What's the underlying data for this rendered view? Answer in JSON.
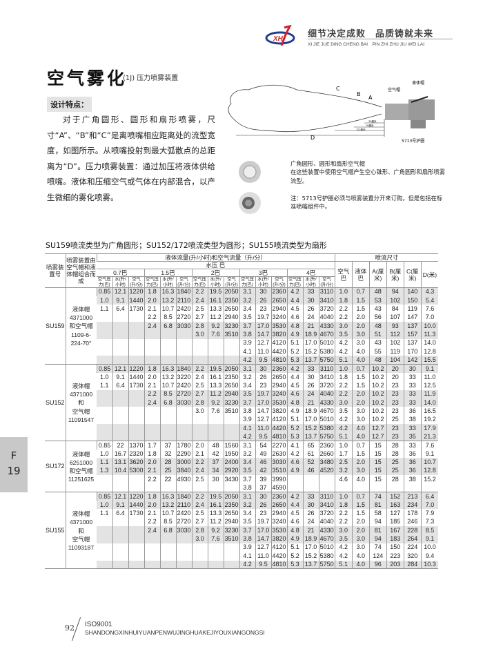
{
  "header": {
    "logo_text": "XH",
    "slogan": "细节决定成败　品质铸就未来",
    "slogan_pinyin": "XI JIE JUE DING CHENG BAI　PIN ZHI ZHU JIU WEI LAI",
    "brand_color": "#1f3f8f",
    "accent_color": "#d0202a"
  },
  "title": {
    "main": "空气雾化",
    "sub": "(1J)  压力喷雾装置"
  },
  "features": {
    "label": "设计特点：",
    "text": "对于广角圆形、圆形和扇形喷雾，尺寸“A”、“B”和“C”是离喷嘴相应距离处的流型宽度，如图所示。从喷嘴投射到最大弧散点的总距离为“D”。压力喷雾装置：通过加压将液体供给喷嘴。液体和压缩空气或气体在内部混合，以产生微细的雾化喷雾。"
  },
  "diagram": {
    "label_a": "A",
    "label_b": "B",
    "label_c": "C",
    "label_d": "D",
    "air_cap": "空气帽",
    "liquid_cap": "液体帽",
    "guard": "5713号护圈",
    "dim1": "30厘米",
    "dim2": "76厘米",
    "dim3": "122厘米"
  },
  "notes": {
    "n1": "广角圆形、圆形和扇形空气帽\n在这些装置中使用空气帽产生空心锥形、广角圆形和扇形喷雾流型。",
    "n2": "注：5713号护圈必须与喷雾装置分开来订购，但是包括在标准喷嘴组件中。"
  },
  "table": {
    "caption": "SU159喷流类型为广角圆形；SU152/172喷流类型为圆形；SU155喷流类型为扇形",
    "h_model": "喷雾装置号",
    "h_combo": "喷雾装置由空气帽和液体帽组合而成",
    "h_flow": "液体流量(升/小时)和空气流量（升/分）",
    "h_pressure": "水压 巴",
    "h_dims": "喷流尺寸",
    "pressures": [
      "0.7巴",
      "1.5巴",
      "2巴",
      "3巴",
      "4巴"
    ],
    "sub_cols": [
      "空气压力(巴)",
      "水(升/小时)",
      "空气(升/分)"
    ],
    "dim_cols": [
      "空气巴",
      "液体巴",
      "A(厘米)",
      "B(厘米)",
      "C(厘米)",
      "D(米)"
    ],
    "groups": [
      {
        "model": "SU159",
        "combo": [
          "液体帽",
          "4371000",
          "和空气帽",
          "1109-6-",
          "224-70°"
        ],
        "combo_start": 2,
        "rows": [
          [
            "0.85",
            "12.1",
            "1220",
            "1.8",
            "16.3",
            "1840",
            "2.2",
            "19.5",
            "2050",
            "3.1",
            "30",
            "2360",
            "4.2",
            "33",
            "3110",
            "1.0",
            "0.7",
            "48",
            "94",
            "140",
            "4.3"
          ],
          [
            "1.0",
            "9.1",
            "1440",
            "2.0",
            "13.2",
            "2110",
            "2.4",
            "16.1",
            "2350",
            "3.2",
            "26",
            "2650",
            "4.4",
            "30",
            "3410",
            "1.8",
            "1.5",
            "53",
            "102",
            "150",
            "5.4"
          ],
          [
            "1.1",
            "6.4",
            "1730",
            "2.1",
            "10.7",
            "2420",
            "2.5",
            "13.3",
            "2650",
            "3.4",
            "23",
            "2940",
            "4.5",
            "26",
            "3720",
            "2.2",
            "1.5",
            "43",
            "84",
            "119",
            "7.6"
          ],
          [
            "",
            "",
            "",
            "2.2",
            "8.5",
            "2720",
            "2.7",
            "11.2",
            "2940",
            "3.5",
            "19.7",
            "3240",
            "4.6",
            "24",
            "4040",
            "2.2",
            "2.0",
            "56",
            "107",
            "147",
            "7.0"
          ],
          [
            "",
            "",
            "",
            "2.4",
            "6.8",
            "3030",
            "2.8",
            "9.2",
            "3230",
            "3.7",
            "17.0",
            "3530",
            "4.8",
            "21",
            "4330",
            "3.0",
            "2.0",
            "48",
            "93",
            "137",
            "10.0"
          ],
          [
            "",
            "",
            "",
            "",
            "",
            "",
            "3.0",
            "7.6",
            "3510",
            "3.8",
            "14.7",
            "3820",
            "4.9",
            "18.9",
            "4670",
            "3.5",
            "3.0",
            "51",
            "112",
            "157",
            "11.3"
          ],
          [
            "",
            "",
            "",
            "",
            "",
            "",
            "",
            "",
            "",
            "3.9",
            "12.7",
            "4120",
            "5.1",
            "17.0",
            "5010",
            "4.2",
            "3.0",
            "43",
            "102",
            "137",
            "14.0"
          ],
          [
            "",
            "",
            "",
            "",
            "",
            "",
            "",
            "",
            "",
            "4.1",
            "11.0",
            "4420",
            "5.2",
            "15.2",
            "5380",
            "4.2",
            "4.0",
            "55",
            "119",
            "170",
            "12.8"
          ],
          [
            "",
            "",
            "",
            "",
            "",
            "",
            "",
            "",
            "",
            "4.2",
            "9.5",
            "4810",
            "5.3",
            "13.7",
            "5750",
            "5.1",
            "4.0",
            "48",
            "104",
            "142",
            "15.5"
          ]
        ]
      },
      {
        "model": "SU152",
        "combo": [
          "液体帽",
          "4371000",
          "和",
          "空气帽",
          "11091547"
        ],
        "combo_start": 2,
        "rows": [
          [
            "0.85",
            "12.1",
            "1220",
            "1.8",
            "16.3",
            "1840",
            "2.2",
            "19.5",
            "2050",
            "3.1",
            "30",
            "2360",
            "4.2",
            "33",
            "3110",
            "1.0",
            "0.7",
            "10.2",
            "20",
            "30",
            "9.1"
          ],
          [
            "1.0",
            "9.1",
            "1440",
            "2.0",
            "13.2",
            "3220",
            "2.4",
            "16.1",
            "2350",
            "3.2",
            "26",
            "2650",
            "4.4",
            "30",
            "3410",
            "1.8",
            "1.5",
            "10.2",
            "20",
            "33",
            "11.0"
          ],
          [
            "1.1",
            "6.4",
            "1730",
            "2.1",
            "10.7",
            "2420",
            "2.5",
            "13.3",
            "2650",
            "3.4",
            "23",
            "2940",
            "4.5",
            "26",
            "3720",
            "2.2",
            "1.5",
            "10.2",
            "23",
            "33",
            "12.5"
          ],
          [
            "",
            "",
            "",
            "2.2",
            "8.5",
            "2720",
            "2.7",
            "11.2",
            "2940",
            "3.5",
            "19.7",
            "3240",
            "4.6",
            "24",
            "4040",
            "2.2",
            "2.0",
            "10.2",
            "23",
            "33",
            "11.9"
          ],
          [
            "",
            "",
            "",
            "2.4",
            "6.8",
            "3030",
            "2.8",
            "9.2",
            "3230",
            "3.7",
            "17.0",
            "3530",
            "4.8",
            "21",
            "4330",
            "3.0",
            "2.0",
            "10.2",
            "23",
            "33",
            "14.0"
          ],
          [
            "",
            "",
            "",
            "",
            "",
            "",
            "3.0",
            "7.6",
            "3510",
            "3.8",
            "14.7",
            "3820",
            "4.9",
            "18.9",
            "4670",
            "3.5",
            "3.0",
            "10.2",
            "23",
            "36",
            "16.5"
          ],
          [
            "",
            "",
            "",
            "",
            "",
            "",
            "",
            "",
            "",
            "3.9",
            "12.7",
            "4120",
            "5.1",
            "17.0",
            "5010",
            "4.2",
            "3.0",
            "10.2",
            "25",
            "38",
            "19.2"
          ],
          [
            "",
            "",
            "",
            "",
            "",
            "",
            "",
            "",
            "",
            "4.1",
            "11.0",
            "4420",
            "5.2",
            "15.2",
            "5380",
            "4.2",
            "4.0",
            "12.7",
            "23",
            "33",
            "17.9"
          ],
          [
            "",
            "",
            "",
            "",
            "",
            "",
            "",
            "",
            "",
            "4.2",
            "9.5",
            "4810",
            "5.3",
            "13.7",
            "5750",
            "5.1",
            "4.0",
            "12.7",
            "23",
            "35",
            "21.3"
          ]
        ]
      },
      {
        "model": "SU172",
        "combo": [
          "液体帽",
          "6251000",
          "和空气帽",
          "11251625"
        ],
        "combo_start": 1,
        "rows": [
          [
            "0.85",
            "22",
            "1370",
            "1.7",
            "37",
            "1780",
            "2.0",
            "48",
            "1560",
            "3.1",
            "54",
            "2270",
            "4.1",
            "65",
            "2360",
            "1.0",
            "0.7",
            "15",
            "28",
            "33",
            "7.6"
          ],
          [
            "1.0",
            "16.7",
            "2320",
            "1.8",
            "32",
            "2290",
            "2.1",
            "42",
            "1950",
            "3.2",
            "49",
            "2630",
            "4.2",
            "61",
            "2660",
            "1.7",
            "1.5",
            "15",
            "28",
            "36",
            "9.1"
          ],
          [
            "1.1",
            "13.1",
            "3620",
            "2.0",
            "28",
            "3000",
            "2.2",
            "37",
            "2400",
            "3.4",
            "46",
            "3030",
            "4.6",
            "52",
            "3480",
            "2.5",
            "2.0",
            "15",
            "25",
            "36",
            "10.7"
          ],
          [
            "1.3",
            "10.4",
            "5300",
            "2.1",
            "25",
            "3840",
            "2.4",
            "34",
            "2920",
            "3.5",
            "42",
            "3510",
            "4.9",
            "46",
            "4520",
            "3.2",
            "3.0",
            "15",
            "25",
            "36",
            "12.8"
          ],
          [
            "",
            "",
            "",
            "2.2",
            "22",
            "4930",
            "2.5",
            "30",
            "3430",
            "3.7",
            "39",
            "3990",
            "",
            "",
            "",
            "4.6",
            "4.0",
            "15",
            "28",
            "38",
            "15.2"
          ],
          [
            "",
            "",
            "",
            "",
            "",
            "",
            "",
            "",
            "",
            "3.8",
            "37",
            "4590",
            "",
            "",
            "",
            "",
            "",
            "",
            "",
            "",
            ""
          ]
        ]
      },
      {
        "model": "SU155",
        "combo": [
          "液体帽",
          "4371000",
          "和",
          "空气帽",
          "11093187"
        ],
        "combo_start": 2,
        "rows": [
          [
            "0.85",
            "12.1",
            "1220",
            "1.8",
            "16.3",
            "1840",
            "2.2",
            "19.5",
            "2050",
            "3.1",
            "30",
            "2360",
            "4.2",
            "33",
            "3110",
            "1.0",
            "0.7",
            "74",
            "152",
            "213",
            "6.4"
          ],
          [
            "1.0",
            "9.1",
            "1440",
            "2.0",
            "13.2",
            "2110",
            "2.4",
            "16.1",
            "2350",
            "3.2",
            "26",
            "2650",
            "4.4",
            "30",
            "3410",
            "1.8",
            "1.5",
            "81",
            "163",
            "234",
            "7.0"
          ],
          [
            "1.1",
            "6.4",
            "1730",
            "2.1",
            "10.7",
            "2420",
            "2.5",
            "13.3",
            "2650",
            "3.4",
            "23",
            "2940",
            "4.5",
            "26",
            "3720",
            "2.2",
            "1.5",
            "58",
            "127",
            "178",
            "7.9"
          ],
          [
            "",
            "",
            "",
            "2.2",
            "8.5",
            "2720",
            "2.7",
            "11.2",
            "2940",
            "3.5",
            "19.7",
            "3240",
            "4.6",
            "24",
            "4040",
            "2.2",
            "2.0",
            "94",
            "185",
            "246",
            "7.3"
          ],
          [
            "",
            "",
            "",
            "2.4",
            "6.8",
            "3030",
            "2.8",
            "9.2",
            "3230",
            "3.7",
            "17.0",
            "3530",
            "4.8",
            "21",
            "4330",
            "3.0",
            "2.0",
            "81",
            "167",
            "228",
            "8.5"
          ],
          [
            "",
            "",
            "",
            "",
            "",
            "",
            "3.0",
            "7.6",
            "3510",
            "3.8",
            "14.7",
            "3820",
            "4.9",
            "18.9",
            "4670",
            "3.5",
            "3.0",
            "94",
            "183",
            "264",
            "9.1"
          ],
          [
            "",
            "",
            "",
            "",
            "",
            "",
            "",
            "",
            "",
            "3.9",
            "12.7",
            "4120",
            "5.1",
            "17.0",
            "5010",
            "4.2",
            "3.0",
            "74",
            "150",
            "224",
            "10.0"
          ],
          [
            "",
            "",
            "",
            "",
            "",
            "",
            "",
            "",
            "",
            "4.1",
            "11.0",
            "4420",
            "5.2",
            "15.2",
            "5380",
            "4.2",
            "4.0",
            "124",
            "223",
            "320",
            "9.4"
          ],
          [
            "",
            "",
            "",
            "",
            "",
            "",
            "",
            "",
            "",
            "4.2",
            "9.5",
            "4810",
            "5.3",
            "13.7",
            "5750",
            "5.1",
            "4.0",
            "96",
            "203",
            "284",
            "10.3"
          ]
        ]
      }
    ]
  },
  "side_tab": {
    "letter": "F",
    "number": "19"
  },
  "footer": {
    "page": "92",
    "iso": "ISO9001",
    "company": "SHANDONGXINHUIYUANPENWUJINGHUAKEJIYOUXIANGONGSI"
  }
}
